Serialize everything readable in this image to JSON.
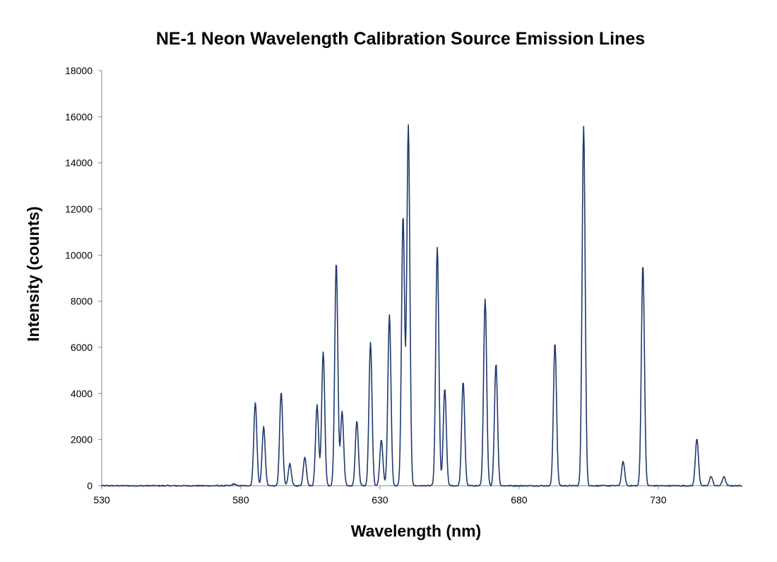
{
  "chart_data": {
    "type": "line",
    "title": "NE-1 Neon Wavelength Calibration Source Emission Lines",
    "xlabel": "Wavelength (nm)",
    "ylabel": "Intensity (counts)",
    "xlim": [
      530,
      760
    ],
    "ylim": [
      0,
      18000
    ],
    "x_ticks": [
      530,
      580,
      630,
      680,
      730
    ],
    "y_ticks": [
      0,
      2000,
      4000,
      6000,
      8000,
      10000,
      12000,
      14000,
      16000,
      18000
    ],
    "grid": false,
    "legend": "none",
    "line_color": "#1f3a6e",
    "baseline_noise": 50,
    "series": [
      {
        "peaks": [
          {
            "x": 577.5,
            "y": 80
          },
          {
            "x": 585.2,
            "y": 3600
          },
          {
            "x": 588.2,
            "y": 2550
          },
          {
            "x": 594.5,
            "y": 4050
          },
          {
            "x": 597.6,
            "y": 950
          },
          {
            "x": 603.0,
            "y": 1250
          },
          {
            "x": 607.4,
            "y": 3500
          },
          {
            "x": 609.6,
            "y": 5800
          },
          {
            "x": 614.3,
            "y": 9700
          },
          {
            "x": 616.4,
            "y": 3200
          },
          {
            "x": 621.7,
            "y": 2800
          },
          {
            "x": 626.6,
            "y": 6200
          },
          {
            "x": 630.5,
            "y": 2000
          },
          {
            "x": 633.4,
            "y": 7400
          },
          {
            "x": 638.3,
            "y": 11700
          },
          {
            "x": 640.2,
            "y": 15600
          },
          {
            "x": 650.6,
            "y": 10350
          },
          {
            "x": 653.3,
            "y": 4200
          },
          {
            "x": 659.9,
            "y": 4500
          },
          {
            "x": 667.8,
            "y": 8100
          },
          {
            "x": 671.7,
            "y": 5300
          },
          {
            "x": 692.9,
            "y": 6200
          },
          {
            "x": 703.2,
            "y": 15600
          },
          {
            "x": 717.4,
            "y": 1050
          },
          {
            "x": 724.5,
            "y": 9600
          },
          {
            "x": 743.9,
            "y": 2050
          },
          {
            "x": 749.0,
            "y": 400
          },
          {
            "x": 753.6,
            "y": 400
          }
        ]
      }
    ]
  }
}
